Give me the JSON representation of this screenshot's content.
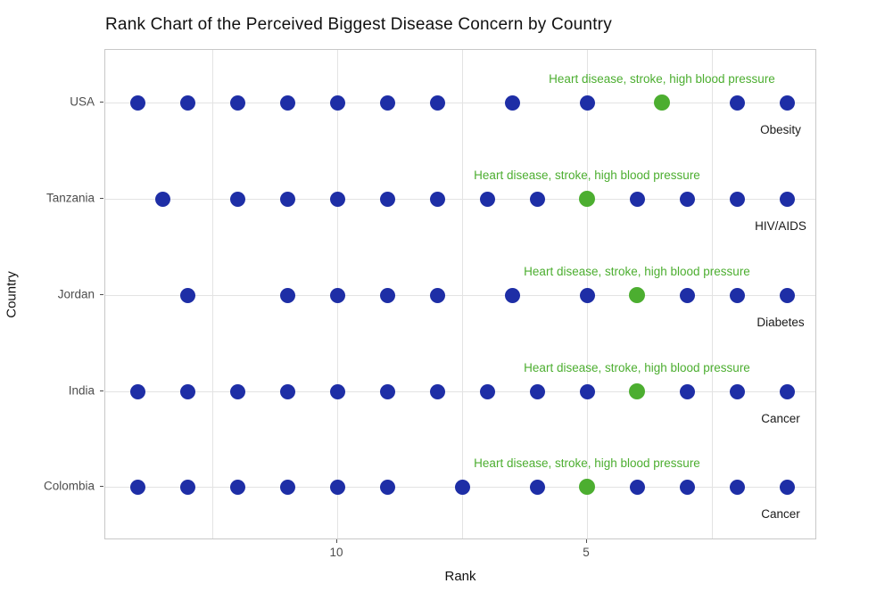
{
  "title": "Rank Chart of the Perceived Biggest Disease Concern by Country",
  "chart_data": {
    "type": "scatter",
    "title": "Rank Chart of the Perceived Biggest Disease Concern by Country",
    "xlabel": "Rank",
    "ylabel": "Country",
    "x_axis": {
      "reversed": true,
      "range": [
        14.6,
        0.4
      ],
      "ticks": [
        {
          "label": "10",
          "rank": 10
        },
        {
          "label": "5",
          "rank": 5
        }
      ],
      "minor_gridline_ranks": [
        12.5,
        7.5,
        2.5
      ],
      "major_gridline_ranks": [
        10,
        5
      ]
    },
    "grid": true,
    "legend": "none",
    "rows": [
      {
        "country": "USA",
        "ranks": [
          14,
          13,
          12,
          11,
          10,
          9,
          8,
          6.5,
          5,
          3.5,
          2,
          1
        ],
        "highlight_rank": 3.5,
        "highlight_label": "Heart disease, stroke, high blood pressure",
        "rank1_disease": "Obesity"
      },
      {
        "country": "Tanzania",
        "ranks": [
          13.5,
          12,
          11,
          10,
          9,
          8,
          7,
          6,
          5,
          4,
          3,
          2,
          1
        ],
        "highlight_rank": 5,
        "highlight_label": "Heart disease, stroke, high blood pressure",
        "rank1_disease": "HIV/AIDS"
      },
      {
        "country": "Jordan",
        "ranks": [
          13,
          11,
          10,
          9,
          8,
          6.5,
          5,
          4,
          3,
          2,
          1
        ],
        "highlight_rank": 4,
        "highlight_label": "Heart disease, stroke, high blood pressure",
        "rank1_disease": "Diabetes"
      },
      {
        "country": "India",
        "ranks": [
          14,
          13,
          12,
          11,
          10,
          9,
          8,
          7,
          6,
          5,
          4,
          3,
          2,
          1
        ],
        "highlight_rank": 4,
        "highlight_label": "Heart disease, stroke, high blood pressure",
        "rank1_disease": "Cancer"
      },
      {
        "country": "Colombia",
        "ranks": [
          14,
          13,
          12,
          11,
          10,
          9,
          7.5,
          6,
          5,
          4,
          3,
          2,
          1
        ],
        "highlight_rank": 5,
        "highlight_label": "Heart disease, stroke, high blood pressure",
        "rank1_disease": "Cancer"
      }
    ],
    "colors": {
      "dot_blue": "#1e2ea6",
      "highlight_green": "#4cae30",
      "gridline": "#e3e3e3",
      "axis_text": "#4d4d4d",
      "panel_border": "#c8c8c8"
    }
  }
}
